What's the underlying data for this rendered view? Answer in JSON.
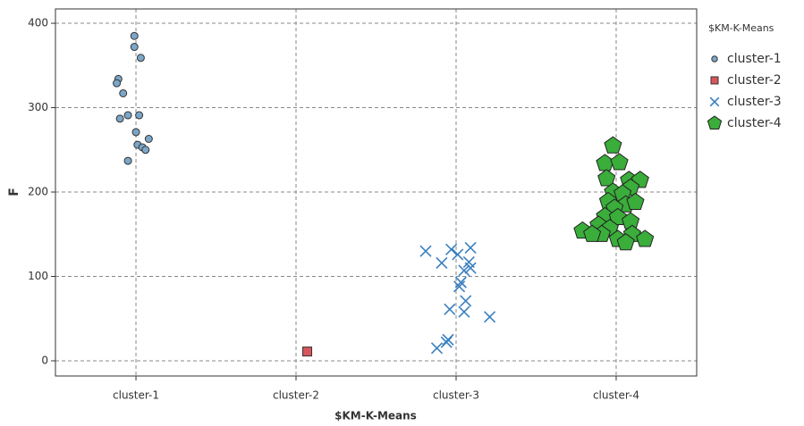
{
  "chart_data": {
    "type": "scatter",
    "x_label": "$KM-K-Means",
    "y_label": "F",
    "legend_title": "$KM-K-Means",
    "legend_position": "right",
    "grid": true,
    "xlim": [
      0.497,
      4.503
    ],
    "ylim": [
      -18,
      417
    ],
    "xticks": [
      {
        "value": 1,
        "label": "cluster-1"
      },
      {
        "value": 2,
        "label": "cluster-2"
      },
      {
        "value": 3,
        "label": "cluster-3"
      },
      {
        "value": 4,
        "label": "cluster-4"
      }
    ],
    "yticks": [
      0,
      100,
      200,
      300,
      400
    ],
    "series": [
      {
        "name": "cluster-1",
        "color": "#7ba6c8",
        "marker": "circle",
        "x": [
          0.99,
          0.99,
          1.03,
          0.89,
          0.88,
          0.92,
          0.95,
          1.02,
          0.9,
          1.0,
          1.08,
          1.01,
          1.04,
          1.06,
          0.95
        ],
        "y": [
          385,
          372,
          359,
          334,
          329,
          317,
          291,
          291,
          287,
          271,
          263,
          256,
          253,
          250,
          237
        ]
      },
      {
        "name": "cluster-2",
        "color": "#d9545c",
        "marker": "square",
        "x": [
          2.07
        ],
        "y": [
          11
        ]
      },
      {
        "name": "cluster-3",
        "color": "#3a7fbf",
        "marker": "x",
        "x": [
          2.81,
          2.91,
          2.97,
          3.01,
          3.09,
          3.08,
          3.09,
          3.05,
          3.03,
          3.02,
          3.06,
          2.96,
          3.05,
          3.21,
          2.95,
          2.94,
          2.88
        ],
        "y": [
          130,
          116,
          132,
          126,
          134,
          117,
          110,
          107,
          93,
          88,
          71,
          61,
          58,
          52,
          25,
          22,
          15
        ]
      },
      {
        "name": "cluster-4",
        "color": "#3aad3a",
        "marker": "pentagon",
        "x": [
          3.98,
          3.93,
          4.02,
          3.94,
          4.08,
          4.15,
          4.09,
          3.98,
          4.04,
          3.95,
          4.06,
          3.99,
          4.12,
          3.93,
          4.01,
          4.09,
          3.89,
          3.96,
          4.1,
          4.18,
          3.91,
          4.01,
          4.06,
          3.79,
          3.85
        ],
        "y": [
          255,
          234,
          235,
          216,
          214,
          214,
          205,
          200,
          198,
          189,
          185,
          181,
          188,
          171,
          170,
          165,
          161,
          157,
          150,
          144,
          150,
          144,
          140,
          154,
          150
        ]
      }
    ]
  }
}
